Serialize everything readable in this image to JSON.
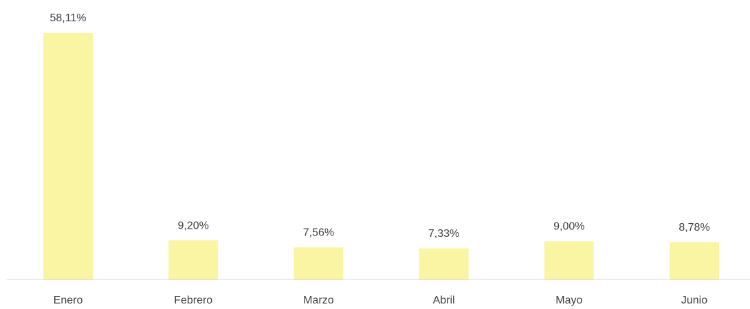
{
  "chart_data": {
    "type": "bar",
    "categories": [
      "Enero",
      "Febrero",
      "Marzo",
      "Abril",
      "Mayo",
      "Junio"
    ],
    "values": [
      58.11,
      9.2,
      7.56,
      7.33,
      9.0,
      8.78
    ],
    "value_labels": [
      "58,11%",
      "9,20%",
      "7,56%",
      "7,33%",
      "9,00%",
      "8,78%"
    ],
    "color": "#f9f5a3"
  }
}
